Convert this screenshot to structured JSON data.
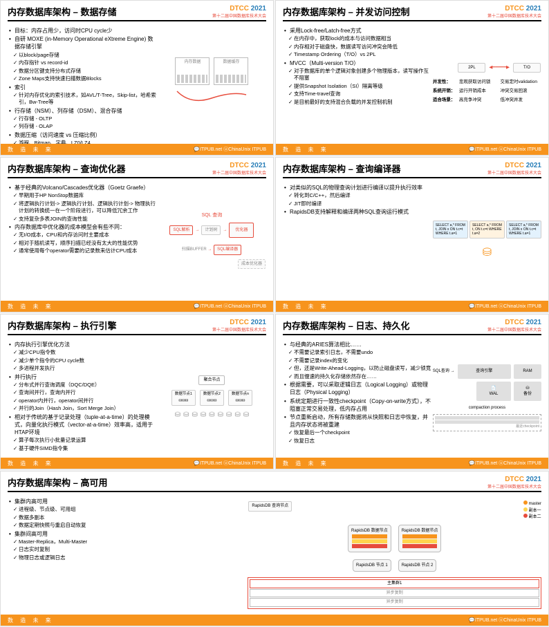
{
  "logo": {
    "dtcc": "DTCC",
    "year": "2021",
    "sub": "第十二届中国数据库技术大会"
  },
  "footer": {
    "left": "数 造 未 来",
    "right": "💬ITPUB.net ⓤChinaUnix ITPUB"
  },
  "slides": [
    {
      "title": "内存数据库架构 – 数据存储",
      "bullets": [
        {
          "t": "目标：内存占用少，访问时CPU cycle少",
          "cls": "b"
        },
        {
          "t": "自研 MOXE (in-Memory Operational eXtreme Engine) 数据存储引擎",
          "cls": "b"
        },
        {
          "t": "以block/page存储",
          "cls": "c",
          "lvl": 1
        },
        {
          "t": "内存指针 vs record-id",
          "cls": "c",
          "lvl": 1
        },
        {
          "t": "数据分区键支持分布式存储",
          "cls": "c",
          "lvl": 1
        },
        {
          "t": "Zone Maps支持快速扫描数据Blocks",
          "cls": "c",
          "lvl": 1
        },
        {
          "t": "索引",
          "cls": "b"
        },
        {
          "t": "针对内存优化的索引技术，如AVL/T-Tree，Skip-list，哈希索引，Bw-Tree等",
          "cls": "c",
          "lvl": 1
        },
        {
          "t": "行存储（NSM）、列存储（DSM）、混合存储",
          "cls": "b"
        },
        {
          "t": "行存储 - OLTP",
          "cls": "c",
          "lvl": 1
        },
        {
          "t": "列存储 - OLAP",
          "cls": "c",
          "lvl": 1
        },
        {
          "t": "数据压缩（访问速度 vs 压缩比例）",
          "cls": "b"
        },
        {
          "t": "游程、Bitmap、字典、LZ0/LZ4",
          "cls": "c",
          "lvl": 1
        }
      ],
      "diagram": {
        "boxes": [
          "内存数据",
          "数据缓存"
        ],
        "note": "store"
      }
    },
    {
      "title": "内存数据库架构 – 并发访问控制",
      "bullets": [
        {
          "t": "采用Lock-free/Latch-free方式",
          "cls": "b"
        },
        {
          "t": "在内存中，获取lock的成本与访问数据相当",
          "cls": "c",
          "lvl": 1
        },
        {
          "t": "内存相对于磁盘快，数据读写访问冲突会降低",
          "cls": "c",
          "lvl": 1
        },
        {
          "t": "Timestamp Ordering（T/O）vs 2PL",
          "cls": "c",
          "lvl": 1
        },
        {
          "t": "MVCC（Multi-version T/O）",
          "cls": "b"
        },
        {
          "t": "对于数据库的单个逻辑对象创建多个物理版本，读写操作互不阻塞",
          "cls": "c",
          "lvl": 1
        },
        {
          "t": "提供Snapshot Isolation（SI）隔离等级",
          "cls": "c",
          "lvl": 1
        },
        {
          "t": "支持Time-travel查询",
          "cls": "c",
          "lvl": 1
        },
        {
          "t": "是目前最好的支持混合负载的并发控制机制",
          "cls": "c",
          "lvl": 1
        }
      ],
      "diagram": {
        "cmp": [
          {
            "lbl": "2PL",
            "r": "T/O"
          },
          {
            "k": "并发性：",
            "l": "悲观获取访问锁",
            "r": "交易定时validation"
          },
          {
            "k": "系统开销：",
            "l": "运行开销成本",
            "r": "冲突交易回滚"
          },
          {
            "k": "适合场景：",
            "l": "高竞争冲突",
            "r": "低冲突并发"
          }
        ]
      }
    },
    {
      "title": "内存数据库架构 – 查询优化器",
      "bullets": [
        {
          "t": "基于经典的Volcano/Cascades优化器（Goetz Graefe）",
          "cls": "b"
        },
        {
          "t": "早期用于HP NonStop数据库",
          "cls": "c",
          "lvl": 1
        },
        {
          "t": "将逻辑执行计划-> 逻辑执行计划、逻辑执行计划-> 物理执行计划的转换统一在一个阶段进行，可以降低冗余工作",
          "cls": "c",
          "lvl": 1
        },
        {
          "t": "支持复杂多表JOIN的查询性能",
          "cls": "c",
          "lvl": 1
        },
        {
          "t": "内存数据库中优化器的成本模型会有些不同：",
          "cls": "b"
        },
        {
          "t": "无I/O成本，CPU和内存访问时主要成本",
          "cls": "c",
          "lvl": 1
        },
        {
          "t": "相对于随机读写，顺序扫描已经没有太大的性能优势",
          "cls": "c",
          "lvl": 1
        },
        {
          "t": "通常使用每个operator需要的记录数来估计CPU成本",
          "cls": "c",
          "lvl": 1
        }
      ],
      "diagram": {
        "flow": [
          "SQL 查询",
          "SQL解析",
          "计划树",
          "优化器",
          "SQL编译器"
        ],
        "in": "扫描BUFFER"
      }
    },
    {
      "title": "内存数据库架构 – 查询编译器",
      "bullets": [
        {
          "t": "对类似的SQL的物理查询计划进行编译以提升执行效率",
          "cls": "b"
        },
        {
          "t": "转化到C/C++，然后编译",
          "cls": "c",
          "lvl": 1
        },
        {
          "t": "JIT即时编译",
          "cls": "c",
          "lvl": 1
        },
        {
          "t": "RapidsDB支持解释和编译两种SQL查询运行模式",
          "cls": "b"
        }
      ],
      "diagram": {
        "sql": [
          "SELECT a,* FROM t, JOIN x ON t.c=t WHERE t.a=1",
          "SELECT a,* FROM t, ON t.c=t WHERE t.a=2",
          "SELECT a,* FROM t, JOIN x ON t.c=t WHERE t.a=1"
        ],
        "db": "▦"
      }
    },
    {
      "title": "内存数据库架构 – 执行引擎",
      "bullets": [
        {
          "t": "内存执行引擎优化方法",
          "cls": "b"
        },
        {
          "t": "减少CPU指令数",
          "cls": "c",
          "lvl": 1
        },
        {
          "t": "减少单个指令的CPU cycle数",
          "cls": "c",
          "lvl": 1
        },
        {
          "t": "多进程并发执行",
          "cls": "c",
          "lvl": 1
        },
        {
          "t": "并行执行",
          "cls": "b"
        },
        {
          "t": "分布式并行查询调度（DQC/DQE）",
          "cls": "c",
          "lvl": 1
        },
        {
          "t": "查询间并行，查询内并行",
          "cls": "c",
          "lvl": 1
        },
        {
          "t": "operator内并行，operator间并行",
          "cls": "c",
          "lvl": 1
        },
        {
          "t": "并行的Join（Hash Join，Sort Merge Join）",
          "cls": "c",
          "lvl": 1
        },
        {
          "t": "相对于传统的基于记录处理（tuple-at-a-time）的处理模式，向量化执行模式（vector-at-a-time）效率高，适用于HTAP环境",
          "cls": "b"
        },
        {
          "t": "算子每次执行小批量记录运算",
          "cls": "c",
          "lvl": 1
        },
        {
          "t": "基于硬件SIMD指令集",
          "cls": "c",
          "lvl": 1
        }
      ],
      "diagram": {
        "tree": true,
        "root": "聚合节点",
        "mids": [
          "数据节点1",
          "数据节点2",
          "数据节点n"
        ]
      }
    },
    {
      "title": "内存数据库架构 – 日志、持久化",
      "bullets": [
        {
          "t": "与经典的ARIES算法相比……",
          "cls": "b"
        },
        {
          "t": "不需要记录索引日志，不需要undo",
          "cls": "c",
          "lvl": 1
        },
        {
          "t": "不需要记录index的变化",
          "cls": "c",
          "lvl": 1
        },
        {
          "t": "但，还是Write-Ahead-Logging，以防止磁盘读写，减少锁竞",
          "cls": "c",
          "lvl": 1
        },
        {
          "t": "而且慢速的持久化存储依然存在……",
          "cls": "c",
          "lvl": 1
        },
        {
          "t": "根据需要，可以采取逻辑日志（Logical Logging）或物理日志（Physical Logging）",
          "cls": "b"
        },
        {
          "t": "系统定期进行一致性checkpoint（Copy-on-write方式），不阻塞正常交易处理，低内存占用",
          "cls": "b"
        },
        {
          "t": "节点重新启动，所有存储数据将从快照和日志中恢复，并且内存状态将被重建",
          "cls": "b"
        },
        {
          "t": "恢复最后一个checkpoint",
          "cls": "c",
          "lvl": 1
        },
        {
          "t": "恢复日志",
          "cls": "c",
          "lvl": 1
        }
      ],
      "diagram": {
        "wal": true,
        "items": [
          "SQL查询",
          "查询引擎",
          "RAM",
          "WAL",
          "备份",
          "compaction process"
        ]
      }
    },
    {
      "title": "内存数据库架构 – 高可用",
      "bullets": [
        {
          "t": "集群内高可用",
          "cls": "b"
        },
        {
          "t": "进程级、节点级、可用组",
          "cls": "c",
          "lvl": 1
        },
        {
          "t": "数据多副本",
          "cls": "c",
          "lvl": 1
        },
        {
          "t": "数据定期快照与重启自动恢复",
          "cls": "c",
          "lvl": 1
        },
        {
          "t": "集群间高可用",
          "cls": "b"
        },
        {
          "t": "Master-Replica，Multi-Master",
          "cls": "c",
          "lvl": 1
        },
        {
          "t": "日志实时复制",
          "cls": "c",
          "lvl": 1
        },
        {
          "t": "物理日志或逻辑日志",
          "cls": "c",
          "lvl": 1
        }
      ],
      "diagram": {
        "ha": true,
        "root": "RapidsDB 查询节点",
        "legend": [
          "master",
          "副本一",
          "副本二"
        ],
        "nodes": [
          "RapidsDB 数据节点",
          "RapidsDB 数据节点",
          "RapidsDB 节点 1",
          "RapidsDB 节点 2"
        ],
        "sync": "主集群1",
        "async": [
          "异步复制",
          "异步复制"
        ]
      }
    }
  ]
}
